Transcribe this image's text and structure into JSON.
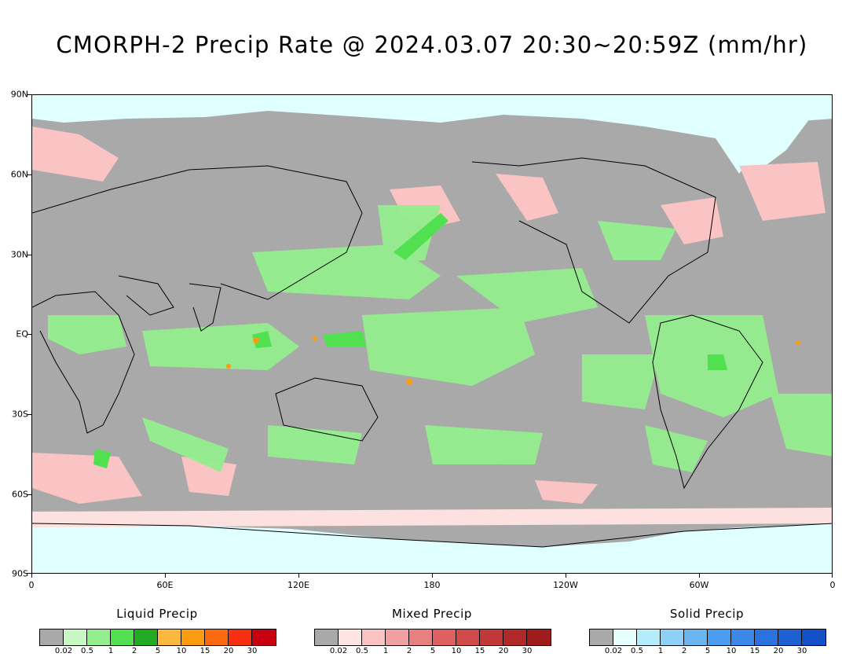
{
  "title": "CMORPH-2 Precip Rate @ 2024.03.07 20:30~20:59Z (mm/hr)",
  "map": {
    "background_color": "#a9a9a9",
    "ocean_ice_color": "#e0ffff",
    "lat_labels": [
      "90N",
      "60N",
      "30N",
      "EQ",
      "30S",
      "60S",
      "90S"
    ],
    "lon_labels": [
      "0",
      "60E",
      "120E",
      "180",
      "120W",
      "60W",
      "0"
    ]
  },
  "legends": [
    {
      "title": "Liquid Precip",
      "colors": [
        "#a9a9a9",
        "#c8f7c3",
        "#94ee8e",
        "#50e050",
        "#22aa22",
        "#fdb83d",
        "#fc9a10",
        "#fb6a10",
        "#f72e10",
        "#c80010"
      ],
      "ticks": [
        "0.02",
        "0.5",
        "1",
        "2",
        "5",
        "10",
        "15",
        "20",
        "30"
      ]
    },
    {
      "title": "Mixed Precip",
      "colors": [
        "#a9a9a9",
        "#ffe4e4",
        "#fbc4c4",
        "#f0a0a0",
        "#e88080",
        "#de6060",
        "#d04a4a",
        "#c23838",
        "#b02828",
        "#9e1c1c"
      ],
      "ticks": [
        "0.02",
        "0.5",
        "1",
        "2",
        "5",
        "10",
        "15",
        "20",
        "30"
      ]
    },
    {
      "title": "Solid Precip",
      "colors": [
        "#a9a9a9",
        "#e6ffff",
        "#b4ecfa",
        "#8fd0f6",
        "#6ab6f2",
        "#4a9cee",
        "#3a88e8",
        "#2a72dc",
        "#1e60d2",
        "#1450c8"
      ],
      "ticks": [
        "0.02",
        "0.5",
        "1",
        "2",
        "5",
        "10",
        "15",
        "20",
        "30"
      ]
    }
  ]
}
